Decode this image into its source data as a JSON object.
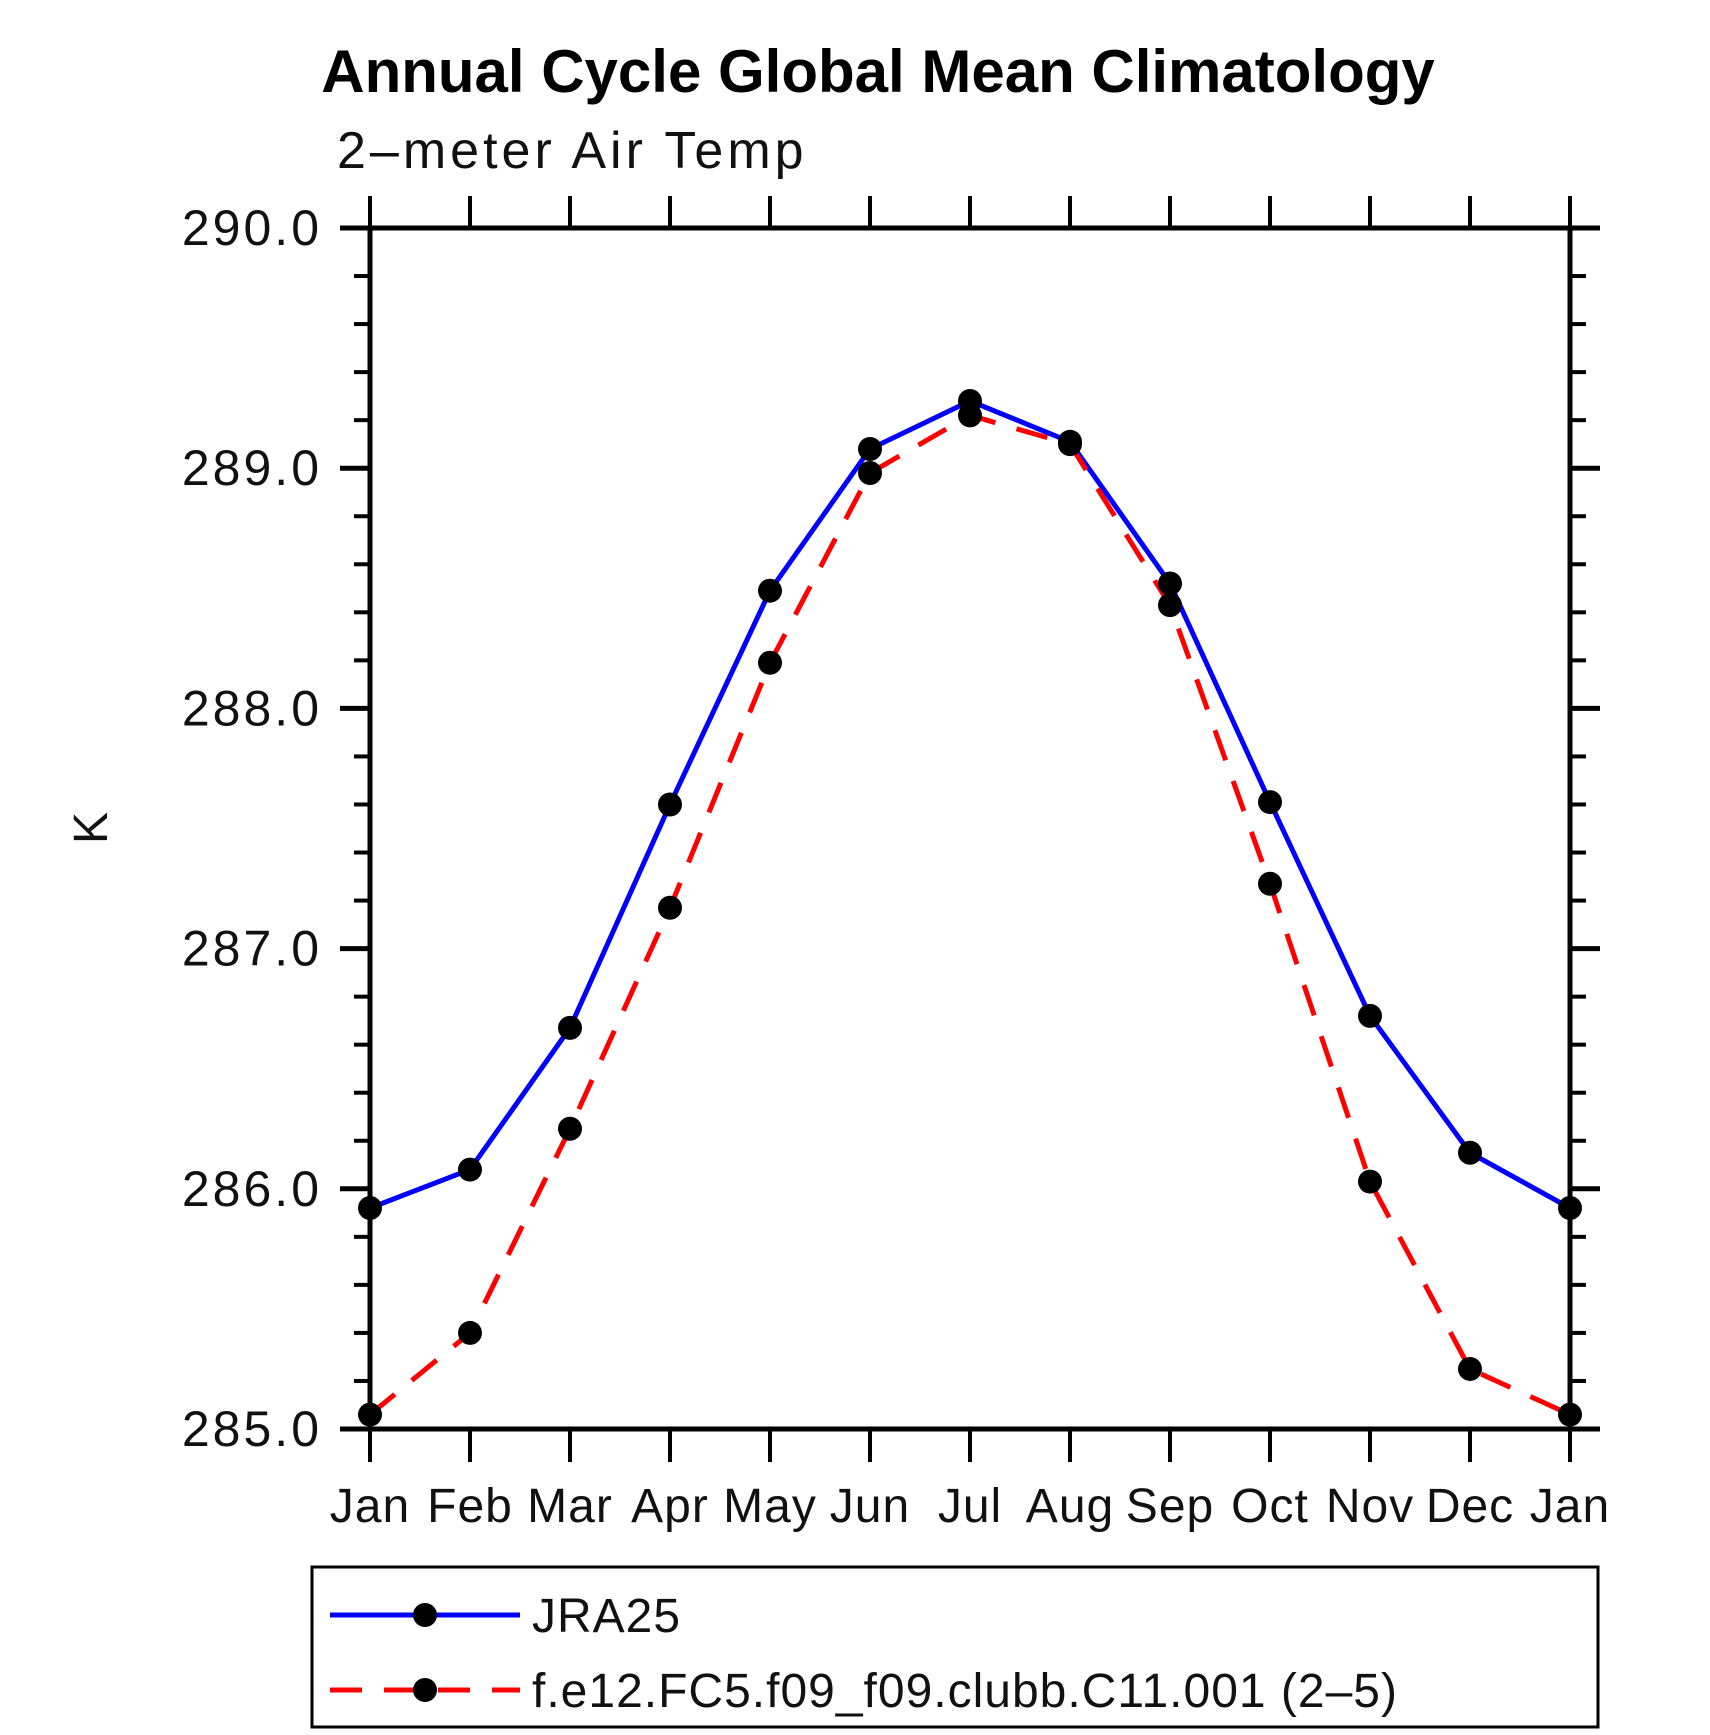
{
  "title": "Annual Cycle Global Mean Climatology",
  "subtitle": "2–meter Air Temp",
  "ylabel": "K",
  "colors": {
    "jra25_line": "#0000ff",
    "model_line": "#ff0000",
    "marker": "#000000",
    "axis": "#000000",
    "background": "#ffffff"
  },
  "chart_data": {
    "type": "line",
    "categories": [
      "Jan",
      "Feb",
      "Mar",
      "Apr",
      "May",
      "Jun",
      "Jul",
      "Aug",
      "Sep",
      "Oct",
      "Nov",
      "Dec",
      "Jan"
    ],
    "series": [
      {
        "name": "JRA25",
        "color": "#0000ff",
        "line_style": "solid",
        "marker": "filled-circle",
        "values": [
          285.92,
          286.08,
          286.67,
          287.6,
          288.49,
          289.08,
          289.28,
          289.11,
          288.52,
          287.61,
          286.72,
          286.15,
          285.92
        ]
      },
      {
        "name": "f.e12.FC5.f09_f09.clubb.C11.001 (2–5)",
        "color": "#ff0000",
        "line_style": "dashed",
        "marker": "filled-circle",
        "values": [
          285.06,
          285.4,
          286.25,
          287.17,
          288.19,
          288.98,
          289.22,
          289.1,
          288.43,
          287.27,
          286.03,
          285.25,
          285.06
        ]
      }
    ],
    "title": "Annual Cycle Global Mean Climatology",
    "subtitle": "2–meter Air Temp",
    "xlabel": "",
    "ylabel": "K",
    "ylim": [
      285.0,
      290.0
    ],
    "ytick_step": 1.0,
    "yminor_per_major": 4,
    "ytick_labels": [
      "285.0",
      "286.0",
      "287.0",
      "288.0",
      "289.0",
      "290.0"
    ],
    "grid": false,
    "legend_position": "bottom-left"
  }
}
